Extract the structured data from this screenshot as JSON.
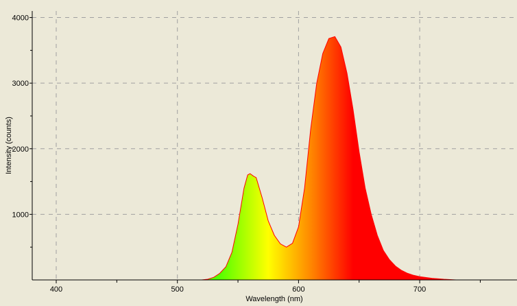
{
  "chart_data": {
    "type": "area",
    "title": "",
    "xlabel": "Wavelength (nm)",
    "ylabel": "Intensity (counts)",
    "xlim": [
      380,
      780
    ],
    "ylim": [
      0,
      4100
    ],
    "x_ticks": [
      400,
      500,
      600,
      700
    ],
    "x_tick_labels": [
      "400",
      "500",
      "600",
      "700"
    ],
    "y_ticks": [
      1000,
      2000,
      3000,
      4000
    ],
    "y_tick_labels": [
      "1000",
      "2000",
      "3000",
      "4000"
    ],
    "grid": true,
    "fill": "visible-spectrum color gradient by wavelength",
    "line_color": "#ff0000",
    "background_color": "#ece9d8",
    "gradient_stops": [
      {
        "nm": 535,
        "color": "#55ff00"
      },
      {
        "nm": 575,
        "color": "#ffff00"
      },
      {
        "nm": 610,
        "color": "#ff8800"
      },
      {
        "nm": 645,
        "color": "#ff0000"
      }
    ],
    "x": [
      520,
      525,
      530,
      535,
      540,
      545,
      550,
      555,
      558,
      560,
      563,
      565,
      570,
      575,
      580,
      585,
      590,
      595,
      600,
      605,
      610,
      615,
      620,
      625,
      630,
      635,
      640,
      645,
      650,
      655,
      660,
      665,
      670,
      675,
      680,
      685,
      690,
      695,
      700,
      710,
      720,
      730
    ],
    "values": [
      0,
      10,
      40,
      100,
      200,
      420,
      850,
      1400,
      1600,
      1620,
      1580,
      1560,
      1250,
      900,
      680,
      550,
      500,
      560,
      810,
      1400,
      2300,
      3000,
      3450,
      3680,
      3710,
      3550,
      3150,
      2600,
      1950,
      1400,
      1000,
      680,
      450,
      310,
      210,
      145,
      100,
      70,
      50,
      25,
      10,
      0
    ]
  }
}
